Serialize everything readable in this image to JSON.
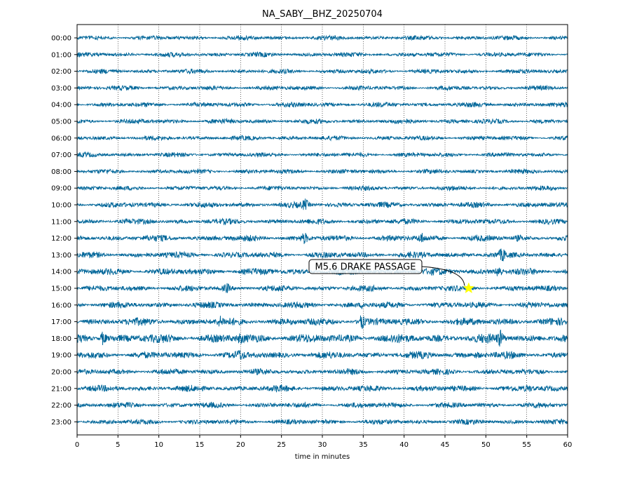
{
  "chart_data": {
    "type": "line",
    "title": "NA_SABY__BHZ_20250704",
    "xlabel": "time in minutes",
    "xlim": [
      0,
      60
    ],
    "x_ticks": [
      0,
      5,
      10,
      15,
      20,
      25,
      30,
      35,
      40,
      45,
      50,
      55,
      60
    ],
    "grid": "vertical dotted lines at every 5 minutes",
    "trace_color": "#006699",
    "rows": [
      "00:00",
      "01:00",
      "02:00",
      "03:00",
      "04:00",
      "05:00",
      "06:00",
      "07:00",
      "08:00",
      "09:00",
      "10:00",
      "11:00",
      "12:00",
      "13:00",
      "14:00",
      "15:00",
      "16:00",
      "17:00",
      "18:00",
      "19:00",
      "20:00",
      "21:00",
      "22:00",
      "23:00"
    ],
    "row_amplitude": [
      0.7,
      0.7,
      0.7,
      0.7,
      0.75,
      0.75,
      0.7,
      0.7,
      0.7,
      0.7,
      0.85,
      0.85,
      0.95,
      0.95,
      1.05,
      0.9,
      0.95,
      1.15,
      1.4,
      1.1,
      0.9,
      0.95,
      0.85,
      0.8
    ],
    "bursts": [
      {
        "row": "10:00",
        "minute": 27.9,
        "amp": 2.6
      },
      {
        "row": "10:00",
        "minute": 31.5,
        "amp": 1.3
      },
      {
        "row": "12:00",
        "minute": 27.8,
        "amp": 2.4
      },
      {
        "row": "12:00",
        "minute": 42.1,
        "amp": 2.2
      },
      {
        "row": "12:00",
        "minute": 54.0,
        "amp": 1.5
      },
      {
        "row": "13:00",
        "minute": 52.0,
        "amp": 2.4
      },
      {
        "row": "14:00",
        "minute": 51.6,
        "amp": 2.8
      },
      {
        "row": "15:00",
        "minute": 18.3,
        "amp": 2.3
      },
      {
        "row": "16:00",
        "minute": 35.0,
        "amp": 1.8
      },
      {
        "row": "17:00",
        "minute": 17.5,
        "amp": 1.8
      },
      {
        "row": "17:00",
        "minute": 34.8,
        "amp": 2.6
      },
      {
        "row": "18:00",
        "minute": 3.2,
        "amp": 2.4
      },
      {
        "row": "18:00",
        "minute": 51.8,
        "amp": 2.4
      },
      {
        "row": "18:00",
        "minute": 20.0,
        "amp": 1.6
      },
      {
        "row": "19:00",
        "minute": 19.9,
        "amp": 1.8
      },
      {
        "row": "19:00",
        "minute": 49.0,
        "amp": 1.6
      },
      {
        "row": "21:00",
        "minute": 55.2,
        "amp": 1.7
      },
      {
        "row": "21:00",
        "minute": 24.5,
        "amp": 1.4
      }
    ],
    "event": {
      "label": "M5.6 DRAKE PASSAGE",
      "row": "15:00",
      "minute": 47.9,
      "marker": "star",
      "marker_color": "#ffff00"
    }
  }
}
